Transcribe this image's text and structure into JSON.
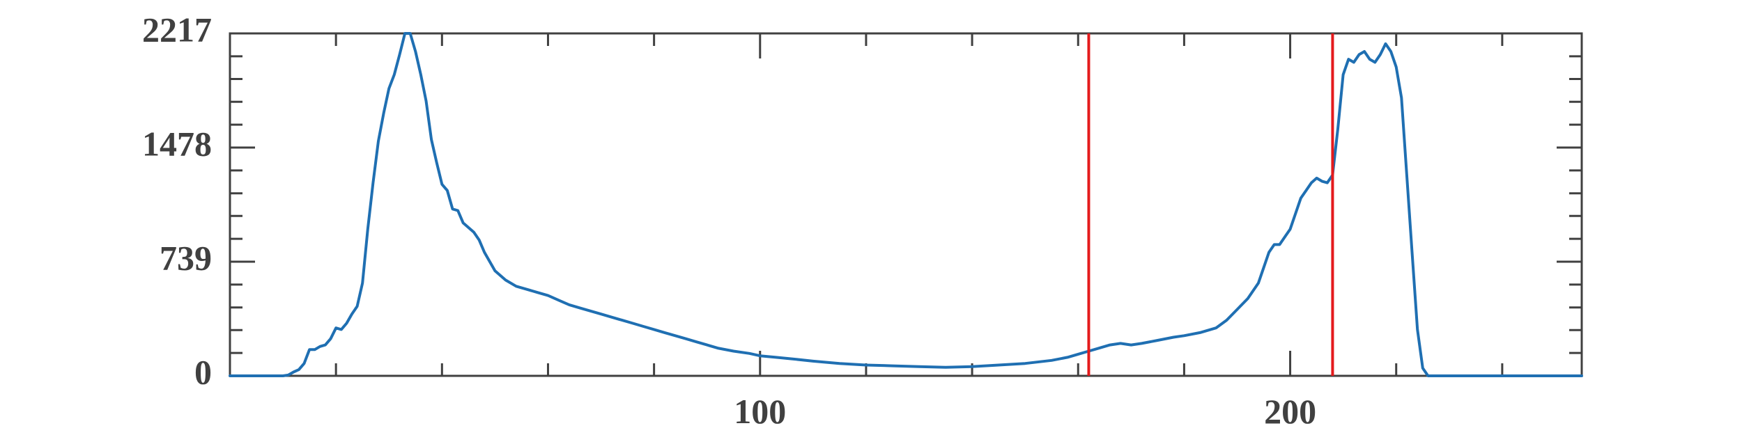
{
  "chart_data": {
    "type": "line",
    "title": "",
    "xlabel": "",
    "ylabel": "",
    "xlim": [
      0,
      255
    ],
    "ylim": [
      0,
      2217
    ],
    "grid": false,
    "legend": "none",
    "colors": {
      "series": "#1f6fb2",
      "markers": "#e41a1c",
      "axis": "#404040",
      "background": "#ffffff"
    },
    "x_major_ticks": [
      100,
      200
    ],
    "x_major_tick_labels": [
      "100",
      "200"
    ],
    "x_minor_ticks": [
      20,
      40,
      60,
      80,
      120,
      140,
      160,
      180,
      220,
      240
    ],
    "y_major_ticks": [
      0,
      739,
      1478,
      2217
    ],
    "y_major_tick_labels": [
      "0",
      "739",
      "1478",
      "2217"
    ],
    "y_minor_ticks": [
      148,
      296,
      443,
      591,
      887,
      1035,
      1182,
      1330,
      1626,
      1774,
      1922,
      2069
    ],
    "vertical_markers": [
      162,
      208
    ],
    "series": [
      {
        "x": [
          0,
          5,
          10,
          11,
          12,
          13,
          14,
          15,
          16,
          17,
          18,
          19,
          20,
          21,
          22,
          23,
          24,
          25,
          26,
          27,
          28,
          29,
          30,
          31,
          32,
          33,
          34,
          35,
          36,
          37,
          38,
          39,
          40,
          41,
          42,
          43,
          44,
          45,
          46,
          47,
          48,
          50,
          52,
          54,
          56,
          58,
          60,
          62,
          64,
          66,
          68,
          70,
          72,
          74,
          76,
          78,
          80,
          82,
          84,
          86,
          88,
          90,
          92,
          95,
          98,
          100,
          103,
          106,
          110,
          115,
          120,
          125,
          130,
          135,
          140,
          145,
          150,
          155,
          158,
          160,
          162,
          164,
          166,
          168,
          170,
          172,
          175,
          178,
          180,
          183,
          186,
          188,
          190,
          192,
          194,
          195,
          196,
          197,
          198,
          199,
          200,
          201,
          202,
          203,
          204,
          205,
          206,
          207,
          208,
          209,
          210,
          211,
          212,
          213,
          214,
          215,
          216,
          217,
          218,
          219,
          220,
          221,
          222,
          223,
          224,
          225,
          226,
          227,
          228,
          229,
          230,
          231,
          232,
          240,
          255
        ],
        "values": [
          0,
          0,
          0,
          5,
          25,
          40,
          80,
          170,
          170,
          190,
          200,
          240,
          310,
          300,
          340,
          400,
          450,
          600,
          950,
          1250,
          1520,
          1700,
          1860,
          1950,
          2080,
          2217,
          2217,
          2100,
          1950,
          1780,
          1530,
          1380,
          1240,
          1200,
          1080,
          1070,
          990,
          960,
          930,
          880,
          800,
          680,
          620,
          580,
          560,
          540,
          520,
          490,
          460,
          440,
          420,
          400,
          380,
          360,
          340,
          320,
          300,
          280,
          260,
          240,
          220,
          200,
          180,
          160,
          145,
          130,
          120,
          110,
          95,
          80,
          70,
          65,
          60,
          55,
          60,
          70,
          80,
          100,
          120,
          140,
          160,
          180,
          200,
          210,
          200,
          210,
          230,
          250,
          260,
          280,
          310,
          360,
          430,
          500,
          600,
          700,
          800,
          850,
          850,
          900,
          950,
          1050,
          1150,
          1200,
          1250,
          1280,
          1260,
          1250,
          1300,
          1600,
          1950,
          2050,
          2030,
          2080,
          2100,
          2050,
          2030,
          2080,
          2150,
          2100,
          2000,
          1800,
          1300,
          800,
          300,
          50,
          0,
          0,
          0,
          0,
          0,
          0,
          0,
          0,
          0
        ]
      }
    ]
  }
}
